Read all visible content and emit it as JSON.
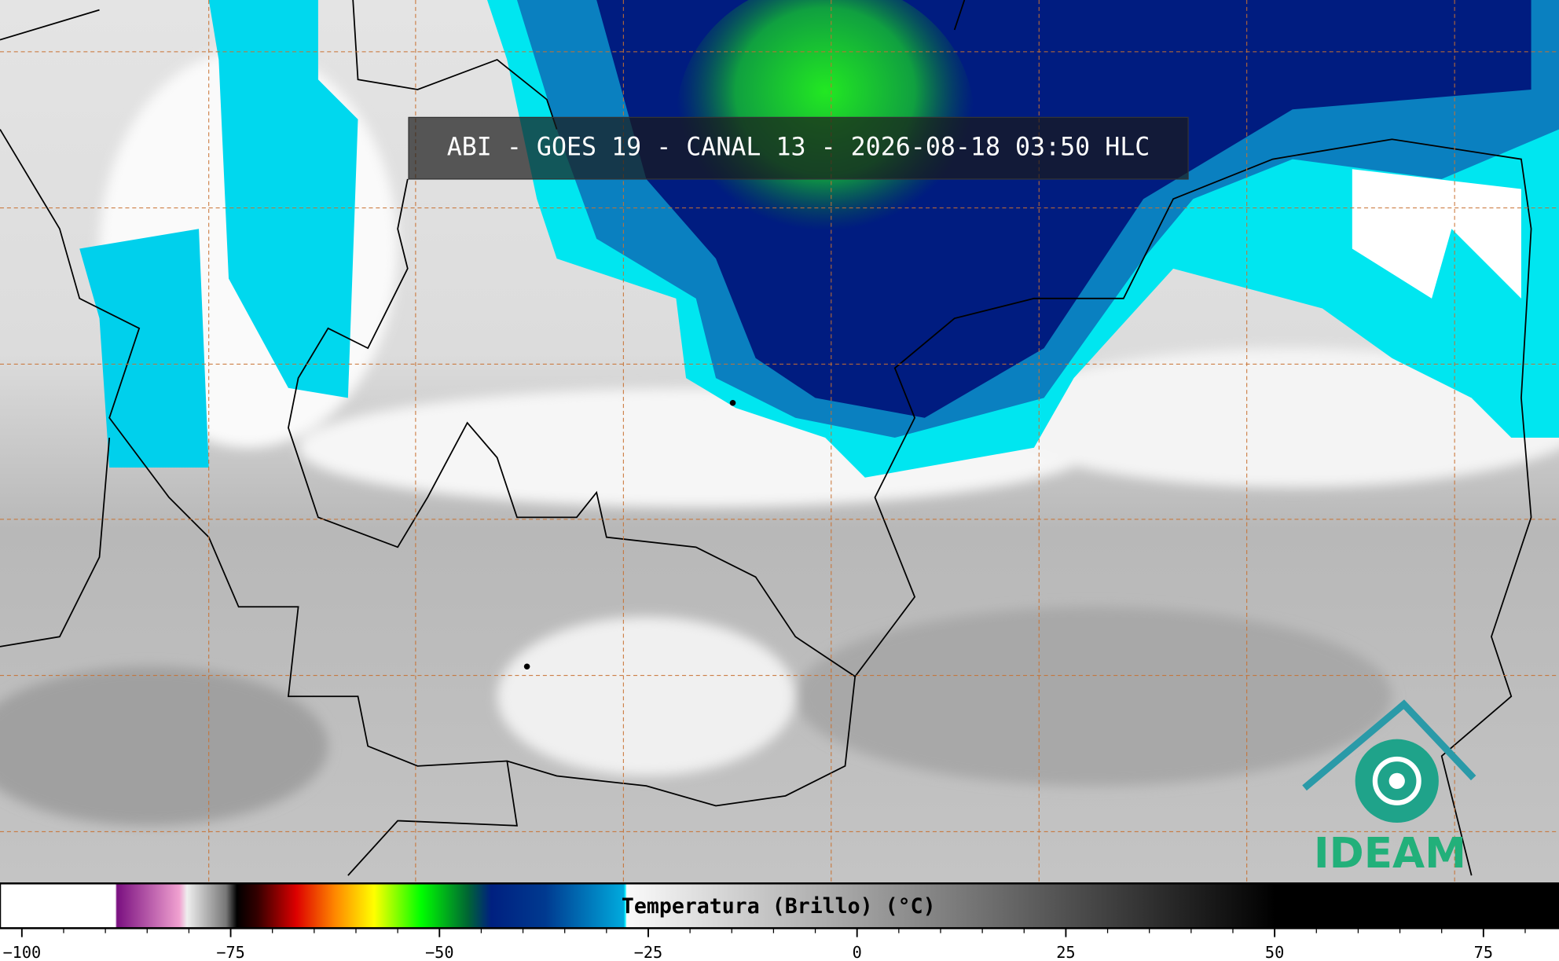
{
  "title": "ABI - GOES 19 - CANAL 13 - 2026-08-18 03:50 HLC",
  "colorbar": {
    "label": "Temperatura (Brillo) (°C)",
    "ticks": [
      {
        "value": -100,
        "label": "−100"
      },
      {
        "value": -75,
        "label": "−75"
      },
      {
        "value": -50,
        "label": "−50"
      },
      {
        "value": -25,
        "label": "−25"
      },
      0,
      25,
      50,
      75
    ]
  },
  "logo": {
    "text": "IDEAM"
  }
}
